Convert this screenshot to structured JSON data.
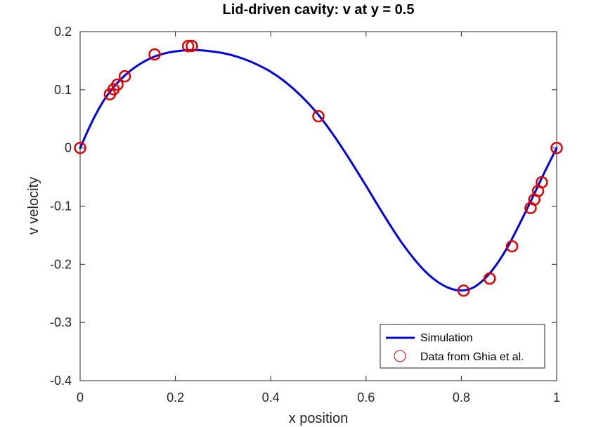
{
  "chart_data": {
    "type": "line",
    "title": "Lid-driven cavity: v at y = 0.5",
    "xlabel": "x position",
    "ylabel": "v velocity",
    "xlim": [
      0,
      1
    ],
    "ylim": [
      -0.4,
      0.2
    ],
    "xticks": [
      0,
      0.2,
      0.4,
      0.6,
      0.8,
      1
    ],
    "xtick_labels": [
      "0",
      "0.2",
      "0.4",
      "0.6",
      "0.8",
      "1"
    ],
    "yticks": [
      -0.4,
      -0.3,
      -0.2,
      -0.1,
      0,
      0.1,
      0.2
    ],
    "ytick_labels": [
      "-0.4",
      "-0.3",
      "-0.2",
      "-0.1",
      "0",
      "0.1",
      "0.2"
    ],
    "grid": false,
    "legend_position": "bottom-right",
    "series": [
      {
        "name": "Simulation",
        "style": "line",
        "color": "#0000e0",
        "x": [
          0,
          0.025,
          0.05,
          0.075,
          0.1,
          0.125,
          0.15,
          0.175,
          0.2,
          0.225,
          0.25,
          0.275,
          0.3,
          0.325,
          0.35,
          0.375,
          0.4,
          0.425,
          0.45,
          0.475,
          0.5,
          0.525,
          0.55,
          0.575,
          0.6,
          0.625,
          0.65,
          0.675,
          0.7,
          0.725,
          0.75,
          0.775,
          0.8,
          0.825,
          0.85,
          0.875,
          0.9,
          0.925,
          0.95,
          0.975,
          1
        ],
        "y": [
          0,
          0.045,
          0.082,
          0.109,
          0.129,
          0.144,
          0.155,
          0.162,
          0.166,
          0.168,
          0.168,
          0.166,
          0.163,
          0.158,
          0.151,
          0.142,
          0.131,
          0.117,
          0.1,
          0.08,
          0.057,
          0.03,
          0.0,
          -0.032,
          -0.065,
          -0.099,
          -0.132,
          -0.163,
          -0.19,
          -0.213,
          -0.23,
          -0.241,
          -0.245,
          -0.24,
          -0.224,
          -0.199,
          -0.166,
          -0.126,
          -0.084,
          -0.041,
          0
        ]
      },
      {
        "name": "Data from Ghia et al.",
        "style": "marker",
        "color": "#dd0000",
        "x": [
          0,
          0.0625,
          0.0703,
          0.0781,
          0.0938,
          0.1563,
          0.2266,
          0.2344,
          0.5,
          0.8047,
          0.8594,
          0.9063,
          0.9453,
          0.9531,
          0.9609,
          0.9688,
          1
        ],
        "y": [
          0,
          0.0923,
          0.1009,
          0.1089,
          0.1232,
          0.1608,
          0.1751,
          0.1753,
          0.0545,
          -0.2453,
          -0.2245,
          -0.1691,
          -0.1031,
          -0.0886,
          -0.0739,
          -0.0591,
          0
        ]
      }
    ]
  }
}
